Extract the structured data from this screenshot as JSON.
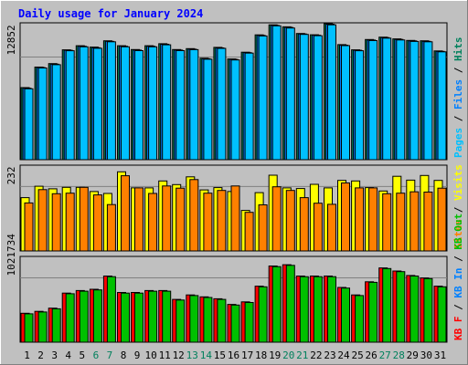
{
  "chart_data": {
    "type": "bar",
    "title": "Daily usage for January 2024",
    "days": [
      {
        "label": "1",
        "weekend": false
      },
      {
        "label": "2",
        "weekend": false
      },
      {
        "label": "3",
        "weekend": false
      },
      {
        "label": "4",
        "weekend": false
      },
      {
        "label": "5",
        "weekend": false
      },
      {
        "label": "6",
        "weekend": true
      },
      {
        "label": "7",
        "weekend": true
      },
      {
        "label": "8",
        "weekend": false
      },
      {
        "label": "9",
        "weekend": false
      },
      {
        "label": "10",
        "weekend": false
      },
      {
        "label": "11",
        "weekend": false
      },
      {
        "label": "12",
        "weekend": false
      },
      {
        "label": "13",
        "weekend": true
      },
      {
        "label": "14",
        "weekend": true
      },
      {
        "label": "15",
        "weekend": false
      },
      {
        "label": "16",
        "weekend": false
      },
      {
        "label": "17",
        "weekend": false
      },
      {
        "label": "18",
        "weekend": false
      },
      {
        "label": "19",
        "weekend": false
      },
      {
        "label": "20",
        "weekend": true
      },
      {
        "label": "21",
        "weekend": true
      },
      {
        "label": "22",
        "weekend": false
      },
      {
        "label": "23",
        "weekend": false
      },
      {
        "label": "24",
        "weekend": false
      },
      {
        "label": "25",
        "weekend": false
      },
      {
        "label": "26",
        "weekend": false
      },
      {
        "label": "27",
        "weekend": true
      },
      {
        "label": "28",
        "weekend": true
      },
      {
        "label": "29",
        "weekend": false
      },
      {
        "label": "30",
        "weekend": false
      },
      {
        "label": "31",
        "weekend": false
      }
    ],
    "panels": [
      {
        "id": "hits",
        "tick_label": "12852",
        "tick_value": 12852,
        "ymax": 17136,
        "legend": [
          {
            "text": "Pages",
            "color": "#00c0ff"
          },
          {
            "text": "Files",
            "color": "#0080ff"
          },
          {
            "text": "Hits",
            "color": "#00805c"
          }
        ],
        "series": [
          {
            "name": "Hits",
            "color": "#00805c",
            "values": [
              9020,
              11600,
              12030,
              13760,
              14270,
              14100,
              14880,
              14270,
              13790,
              14270,
              14520,
              13790,
              13900,
              12700,
              14060,
              12610,
              13460,
              15630,
              16880,
              16630,
              15800,
              15640,
              17030,
              14400,
              13760,
              15050,
              15340,
              15130,
              14930,
              14880,
              13620
            ]
          },
          {
            "name": "Files",
            "color": "#0080ff",
            "values": [
              8950,
              11540,
              11960,
              13700,
              14200,
              14020,
              14820,
              14200,
              13720,
              14200,
              14450,
              13720,
              13840,
              12640,
              14000,
              12550,
              13400,
              15560,
              16820,
              16560,
              15740,
              15580,
              16960,
              14340,
              13700,
              14980,
              15280,
              15060,
              14870,
              14820,
              13560
            ]
          },
          {
            "name": "Pages",
            "color": "#00c0ff",
            "values": [
              8880,
              11480,
              11890,
              13640,
              14130,
              13950,
              14760,
              14130,
              13650,
              14130,
              14380,
              13650,
              13780,
              12580,
              13940,
              12490,
              13340,
              15490,
              16760,
              16490,
              15680,
              15520,
              16890,
              14280,
              13640,
              14910,
              15220,
              14990,
              14810,
              14760,
              13500
            ]
          }
        ]
      },
      {
        "id": "sites",
        "tick_label": "232",
        "tick_value": 232,
        "ymax": 309,
        "legend": [
          {
            "text": "Sites",
            "color": "#ff8000"
          },
          {
            "text": "Visits",
            "color": "#ffff00"
          }
        ],
        "series": [
          {
            "name": "Visits",
            "color": "#ffff00",
            "values": [
              192,
              233,
              224,
              229,
              229,
              214,
              207,
              285,
              227,
              227,
              252,
              239,
              267,
              220,
              228,
              214,
              146,
              210,
              273,
              227,
              225,
              240,
              227,
              254,
              252,
              228,
              216,
              269,
              255,
              272,
              254
            ]
          },
          {
            "name": "Sites",
            "color": "#ff8000",
            "values": [
              173,
              221,
              206,
              208,
              229,
              202,
              167,
              271,
              227,
              207,
              234,
              226,
              257,
              208,
              218,
              234,
              139,
              166,
              231,
              218,
              192,
              172,
              168,
              245,
              227,
              227,
              206,
              208,
              213,
              212,
              226
            ]
          }
        ]
      },
      {
        "id": "kbytes",
        "tick_label": "1021734",
        "tick_value": 1021734,
        "ymax": 1362312,
        "legend": [
          {
            "text": "KB F",
            "color": "#ff0000"
          },
          {
            "text": "KB In",
            "color": "#0080ff"
          },
          {
            "text": "KB Out",
            "color": "#00c000"
          }
        ],
        "series": [
          {
            "name": "KB F",
            "color": "#ff0000",
            "values": [
              460000,
              490000,
              540000,
              780000,
              820000,
              840000,
              1050000,
              790000,
              790000,
              820000,
              820000,
              680000,
              750000,
              720000,
              690000,
              600000,
              640000,
              890000,
              1210000,
              1230000,
              1050000,
              1050000,
              1050000,
              870000,
              750000,
              960000,
              1180000,
              1130000,
              1060000,
              1020000,
              890000
            ]
          },
          {
            "name": "KB Out",
            "color": "#00c000",
            "values": [
              450000,
              480000,
              530000,
              770000,
              810000,
              830000,
              1040000,
              780000,
              780000,
              810000,
              810000,
              670000,
              740000,
              710000,
              680000,
              590000,
              630000,
              880000,
              1200000,
              1220000,
              1040000,
              1040000,
              1040000,
              860000,
              740000,
              950000,
              1170000,
              1120000,
              1050000,
              1010000,
              880000
            ]
          }
        ]
      }
    ]
  }
}
